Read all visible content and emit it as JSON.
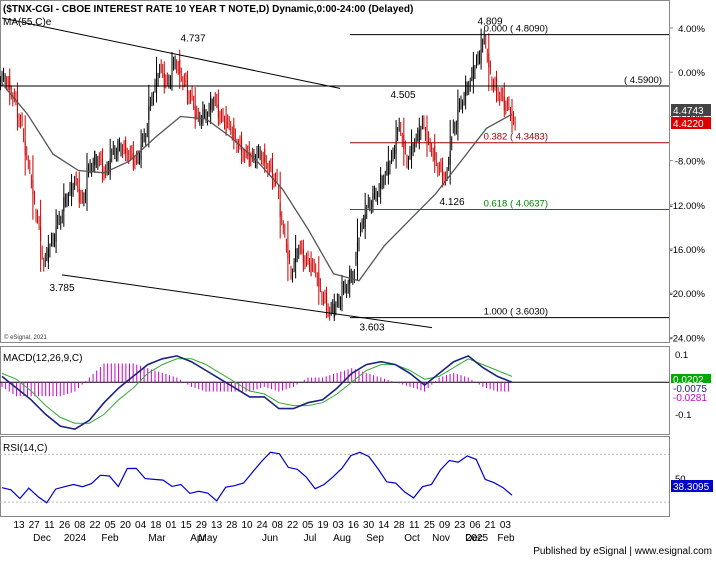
{
  "header": {
    "title": "($TNX-CGI - CBOE INTEREST RATE 10 YEAR T NOTE,D) Dynamic,0:00-24:00 (Delayed)",
    "ma_label": "MA(55,C)e",
    "copyright": "© eSignal, 2021",
    "published": "Published by eSignal | www.esignal.com"
  },
  "chart_data": [
    {
      "type": "candlestick",
      "panel": "price",
      "y_axis_ticks": [
        "4.00%",
        "0.00%",
        "-4.00%",
        "-8.00%",
        "-12.00%",
        "-16.00%",
        "-20.00%",
        "-24.00%"
      ],
      "ylim": [
        3.55,
        4.88
      ],
      "x_day_ticks": [
        "13",
        "27",
        "11",
        "26",
        "08",
        "22",
        "05",
        "20",
        "04",
        "18",
        "01",
        "15",
        "29",
        "13",
        "28",
        "10",
        "24",
        "08",
        "22",
        "05",
        "19",
        "03",
        "16",
        "30",
        "14",
        "28",
        "11",
        "25",
        "09",
        "23",
        "06",
        "21",
        "03"
      ],
      "x_month_labels": [
        "Dec",
        "2024",
        "Feb",
        "Mar",
        "Apr",
        "May",
        "Jun",
        "Jul",
        "Aug",
        "Sep",
        "Oct",
        "Nov",
        "Dec",
        "2025",
        "Feb"
      ],
      "series": [
        {
          "name": "MA(55,C)e",
          "color": "#555555",
          "x": [
            0.0,
            0.05,
            0.1,
            0.15,
            0.2,
            0.25,
            0.3,
            0.35,
            0.4,
            0.45,
            0.5,
            0.55,
            0.6,
            0.65,
            0.7,
            0.75,
            0.8,
            0.85,
            0.9,
            0.95,
            1.0
          ],
          "values": [
            4.6,
            4.47,
            4.3,
            4.23,
            4.22,
            4.27,
            4.37,
            4.46,
            4.45,
            4.37,
            4.27,
            4.15,
            3.98,
            3.79,
            3.76,
            3.91,
            4.02,
            4.13,
            4.27,
            4.41,
            4.47
          ]
        }
      ],
      "candles": {
        "color_up": "#000000",
        "color_down": "#cc0000",
        "closes": [
          4.62,
          4.55,
          4.43,
          4.25,
          4.05,
          3.84,
          3.92,
          4.02,
          4.12,
          4.18,
          4.1,
          4.25,
          4.28,
          4.22,
          4.31,
          4.33,
          4.3,
          4.27,
          4.37,
          4.55,
          4.66,
          4.6,
          4.69,
          4.62,
          4.54,
          4.45,
          4.47,
          4.53,
          4.45,
          4.42,
          4.35,
          4.3,
          4.28,
          4.3,
          4.25,
          4.19,
          3.97,
          3.8,
          3.9,
          3.84,
          3.81,
          3.7,
          3.63,
          3.66,
          3.73,
          3.79,
          3.98,
          4.08,
          4.13,
          4.2,
          4.28,
          4.41,
          4.28,
          4.35,
          4.42,
          4.33,
          4.25,
          4.2,
          4.4,
          4.52,
          4.6,
          4.69,
          4.78,
          4.61,
          4.55,
          4.5,
          4.42
        ],
        "highs_lows_note": "daily OHLC bars, Dec 2023 to Feb 2025"
      },
      "annotations": [
        {
          "text": "4.737",
          "value": 4.737
        },
        {
          "text": "3.785",
          "value": 3.785
        },
        {
          "text": "3.603",
          "value": 3.603
        },
        {
          "text": "4.505",
          "value": 4.505
        },
        {
          "text": "4.126",
          "value": 4.126
        },
        {
          "text": "4.809",
          "value": 4.809
        }
      ],
      "horizontal_lines": [
        {
          "label": "0.000  ( 4.8090)",
          "value": 4.809,
          "color": "#000000"
        },
        {
          "label": "( 4.5900)",
          "value": 4.59,
          "color": "#000000"
        },
        {
          "label": "0.382  ( 4.3483)",
          "value": 4.3483,
          "color": "#a00000"
        },
        {
          "label": "0.618  ( 4.0637)",
          "value": 4.0637,
          "color": "#008000"
        },
        {
          "label": "1.000  ( 3.6030)",
          "value": 3.603,
          "color": "#000000"
        }
      ],
      "price_tags": [
        {
          "text": "4.4743",
          "color": "#444444"
        },
        {
          "text": "4.4220",
          "color": "#dd0000"
        }
      ]
    },
    {
      "type": "line",
      "panel": "macd",
      "title": "MACD(12,26,9,C)",
      "y_axis_ticks": [
        "0.1",
        "0",
        "-0.1"
      ],
      "ylim": [
        -0.17,
        0.11
      ],
      "series": [
        {
          "name": "MACD",
          "color": "#1a237e",
          "values": [
            0.02,
            -0.02,
            -0.06,
            -0.11,
            -0.15,
            -0.16,
            -0.13,
            -0.07,
            -0.02,
            0.02,
            0.06,
            0.08,
            0.09,
            0.07,
            0.04,
            0.01,
            -0.02,
            -0.05,
            -0.05,
            -0.09,
            -0.09,
            -0.07,
            -0.06,
            -0.02,
            0.03,
            0.06,
            0.07,
            0.06,
            0.03,
            -0.01,
            0.03,
            0.07,
            0.09,
            0.05,
            0.02,
            0.0
          ]
        },
        {
          "name": "Signal",
          "color": "#33aa33",
          "values": [
            0.03,
            0.01,
            -0.03,
            -0.08,
            -0.12,
            -0.14,
            -0.14,
            -0.11,
            -0.06,
            -0.02,
            0.03,
            0.06,
            0.08,
            0.08,
            0.06,
            0.03,
            0.0,
            -0.03,
            -0.04,
            -0.07,
            -0.08,
            -0.08,
            -0.07,
            -0.04,
            0.0,
            0.04,
            0.06,
            0.06,
            0.04,
            0.01,
            0.02,
            0.05,
            0.08,
            0.06,
            0.04,
            0.02
          ]
        }
      ],
      "value_tags": [
        {
          "text": "0.0202",
          "color": "#00aa00"
        },
        {
          "text": "-0.0075",
          "color": "#1a237e"
        },
        {
          "text": "-0.0281",
          "color": "#cc00cc"
        }
      ]
    },
    {
      "type": "line",
      "panel": "rsi",
      "title": "RSI(14,C)",
      "y_axis_ticks": [
        "50"
      ],
      "ylim": [
        20,
        82
      ],
      "series": [
        {
          "name": "RSI",
          "color": "#0000cc",
          "values": [
            42,
            38,
            36,
            40,
            34,
            32,
            38,
            44,
            46,
            40,
            48,
            52,
            50,
            46,
            56,
            58,
            52,
            46,
            50,
            44,
            42,
            40,
            38,
            36,
            34,
            40,
            44,
            48,
            52,
            66,
            72,
            68,
            62,
            56,
            50,
            44,
            42,
            52,
            60,
            66,
            74,
            68,
            56,
            50,
            44,
            38,
            36,
            40,
            46,
            58,
            62,
            66,
            68,
            64,
            52,
            44,
            42,
            38
          ]
        }
      ],
      "value_tags": [
        {
          "text": "38.3095",
          "color": "#0000cc"
        }
      ]
    }
  ]
}
